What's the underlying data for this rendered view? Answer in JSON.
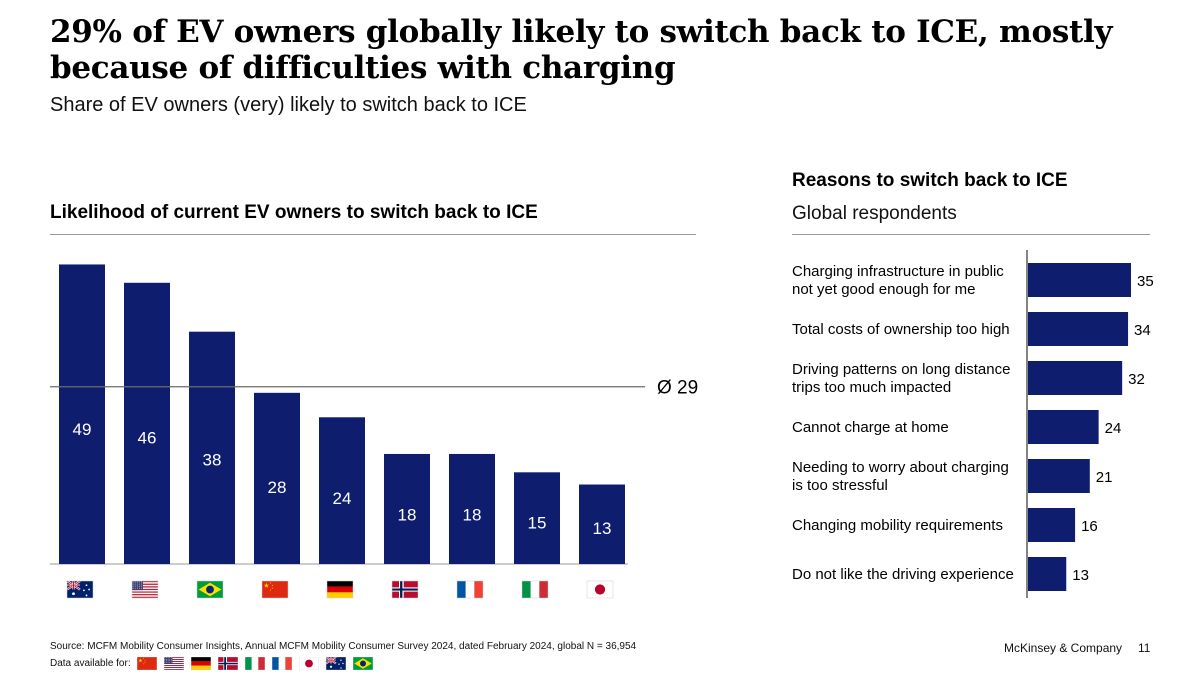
{
  "header": {
    "title": "29% of EV owners globally likely to switch back to ICE, mostly because of difficulties with charging",
    "subtitle": "Share of EV owners (very) likely to switch back to ICE"
  },
  "colors": {
    "bar": "#0f1d6e",
    "rule": "#9a9a9a"
  },
  "chart_data": [
    {
      "type": "bar",
      "title": "Likelihood of current EV owners to switch back to ICE",
      "categories": [
        "Australia",
        "United States",
        "Brazil",
        "China",
        "Germany",
        "Norway",
        "France",
        "Italy",
        "Japan"
      ],
      "category_icons": [
        "flag-au",
        "flag-us",
        "flag-br",
        "flag-cn",
        "flag-de",
        "flag-no",
        "flag-fr",
        "flag-it",
        "flag-jp"
      ],
      "values": [
        49,
        46,
        38,
        28,
        24,
        18,
        18,
        15,
        13
      ],
      "value_labels": [
        "49",
        "46",
        "38",
        "28",
        "24",
        "18",
        "18",
        "15",
        "13"
      ],
      "average": {
        "value": 29,
        "label": "Ø 29"
      },
      "ylim": [
        0,
        53
      ]
    },
    {
      "type": "bar",
      "orientation": "horizontal",
      "title": "Reasons to switch back to ICE",
      "subtitle": "Global respondents",
      "categories": [
        "Charging infrastructure in public not yet good enough for me",
        "Total costs of ownership too high",
        "Driving patterns on long distance trips too much impacted",
        "Cannot charge at home",
        "Needing to worry about charging is too stressful",
        "Changing mobility requirements",
        "Do not like the driving experience"
      ],
      "category_lines": [
        [
          "Charging infrastructure in public",
          "not yet good enough for me"
        ],
        [
          "Total costs of ownership too high"
        ],
        [
          "Driving patterns on long distance",
          "trips too much impacted"
        ],
        [
          "Cannot charge at home"
        ],
        [
          "Needing to worry about charging",
          "is too stressful"
        ],
        [
          "Changing mobility requirements"
        ],
        [
          "Do not like the driving experience"
        ]
      ],
      "values": [
        35,
        34,
        32,
        24,
        21,
        16,
        13
      ],
      "value_labels": [
        "35",
        "34",
        "32",
        "24",
        "21",
        "16",
        "13"
      ],
      "xlim": [
        0,
        35
      ]
    }
  ],
  "footer": {
    "source": "Source: MCFM Mobility Consumer Insights, Annual MCFM Mobility Consumer Survey 2024, dated February 2024, global N = 36,954",
    "available_label": "Data available for:",
    "available_flags": [
      "flag-cn",
      "flag-us",
      "flag-de",
      "flag-no",
      "flag-it",
      "flag-fr",
      "flag-jp",
      "flag-au",
      "flag-br"
    ],
    "brand": "McKinsey & Company",
    "page": "11"
  }
}
